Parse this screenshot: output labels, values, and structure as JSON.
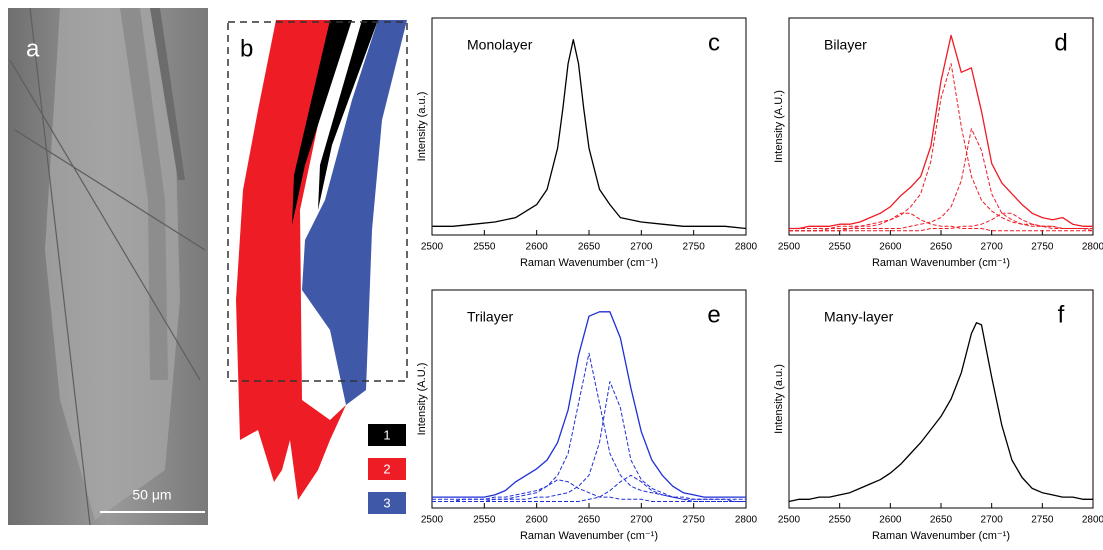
{
  "panel_a": {
    "label": "a",
    "scale_bar": "50 μm"
  },
  "panel_b": {
    "label": "b",
    "legend": [
      {
        "label": "1",
        "color": "#000000"
      },
      {
        "label": "2",
        "color": "#ee1c25"
      },
      {
        "label": "3",
        "color": "#3f58a8"
      }
    ]
  },
  "chart_data": [
    {
      "type": "line",
      "panel_label": "c",
      "title": "Monolayer",
      "x_label": "Raman Wavenumber (cm⁻¹)",
      "y_label": "Intensity (a.u.)",
      "x": [
        2500,
        2520,
        2540,
        2560,
        2580,
        2600,
        2610,
        2620,
        2625,
        2630,
        2635,
        2640,
        2645,
        2650,
        2660,
        2670,
        2680,
        2700,
        2720,
        2740,
        2760,
        2780,
        2800
      ],
      "series": [
        {
          "color": "#000000",
          "dash": false,
          "values": [
            0.04,
            0.04,
            0.05,
            0.06,
            0.08,
            0.14,
            0.21,
            0.4,
            0.58,
            0.79,
            0.9,
            0.79,
            0.58,
            0.4,
            0.21,
            0.14,
            0.08,
            0.06,
            0.05,
            0.04,
            0.04,
            0.04,
            0.03
          ]
        }
      ],
      "xlim": [
        2500,
        2800
      ],
      "ylim": [
        0,
        1
      ],
      "xticks": [
        2500,
        2550,
        2600,
        2650,
        2700,
        2750,
        2800
      ]
    },
    {
      "type": "line",
      "panel_label": "d",
      "title": "Bilayer",
      "x_label": "Raman Wavenumber (cm⁻¹)",
      "y_label": "Intensity (A.U.)",
      "x": [
        2500,
        2510,
        2520,
        2530,
        2540,
        2550,
        2560,
        2570,
        2580,
        2590,
        2600,
        2610,
        2620,
        2630,
        2640,
        2650,
        2660,
        2670,
        2680,
        2690,
        2700,
        2710,
        2720,
        2730,
        2740,
        2750,
        2760,
        2770,
        2780,
        2790,
        2800
      ],
      "series": [
        {
          "color": "#ee1c25",
          "dash": false,
          "values": [
            0.03,
            0.03,
            0.04,
            0.04,
            0.04,
            0.05,
            0.05,
            0.06,
            0.08,
            0.1,
            0.13,
            0.18,
            0.22,
            0.27,
            0.41,
            0.71,
            0.92,
            0.75,
            0.77,
            0.57,
            0.33,
            0.24,
            0.19,
            0.14,
            0.1,
            0.08,
            0.07,
            0.08,
            0.05,
            0.04,
            0.04
          ]
        },
        {
          "color": "#ee1c25",
          "dash": true,
          "values": [
            0.03,
            0.03,
            0.03,
            0.03,
            0.03,
            0.04,
            0.04,
            0.04,
            0.05,
            0.06,
            0.07,
            0.09,
            0.13,
            0.19,
            0.34,
            0.63,
            0.79,
            0.5,
            0.27,
            0.16,
            0.11,
            0.08,
            0.06,
            0.05,
            0.05,
            0.04,
            0.04,
            0.03,
            0.03,
            0.03,
            0.03
          ]
        },
        {
          "color": "#ee1c25",
          "dash": true,
          "values": [
            0.02,
            0.02,
            0.02,
            0.02,
            0.02,
            0.02,
            0.03,
            0.03,
            0.03,
            0.03,
            0.03,
            0.03,
            0.04,
            0.05,
            0.06,
            0.08,
            0.13,
            0.25,
            0.49,
            0.39,
            0.19,
            0.1,
            0.07,
            0.05,
            0.04,
            0.04,
            0.03,
            0.03,
            0.03,
            0.03,
            0.03
          ]
        },
        {
          "color": "#ee1c25",
          "dash": true,
          "values": [
            0.02,
            0.02,
            0.02,
            0.02,
            0.03,
            0.03,
            0.03,
            0.04,
            0.04,
            0.05,
            0.07,
            0.1,
            0.1,
            0.07,
            0.05,
            0.04,
            0.04,
            0.03,
            0.03,
            0.03,
            0.02,
            0.02,
            0.02,
            0.02,
            0.02,
            0.02,
            0.02,
            0.02,
            0.02,
            0.02,
            0.02
          ]
        },
        {
          "color": "#ee1c25",
          "dash": true,
          "values": [
            0.02,
            0.02,
            0.02,
            0.02,
            0.02,
            0.02,
            0.02,
            0.02,
            0.02,
            0.02,
            0.02,
            0.02,
            0.02,
            0.02,
            0.03,
            0.03,
            0.03,
            0.04,
            0.04,
            0.05,
            0.07,
            0.1,
            0.1,
            0.07,
            0.05,
            0.04,
            0.04,
            0.03,
            0.03,
            0.03,
            0.02
          ]
        }
      ],
      "xlim": [
        2500,
        2800
      ],
      "ylim": [
        0,
        1
      ],
      "xticks": [
        2500,
        2550,
        2600,
        2650,
        2700,
        2750,
        2800
      ]
    },
    {
      "type": "line",
      "panel_label": "e",
      "title": "Trilayer",
      "x_label": "Raman Wavenumber (cm⁻¹)",
      "y_label": "Intensity (A.U.)",
      "x": [
        2500,
        2510,
        2520,
        2530,
        2540,
        2550,
        2560,
        2570,
        2580,
        2590,
        2600,
        2610,
        2620,
        2630,
        2640,
        2650,
        2660,
        2670,
        2680,
        2690,
        2700,
        2710,
        2720,
        2730,
        2740,
        2750,
        2760,
        2770,
        2780,
        2790,
        2800
      ],
      "series": [
        {
          "color": "#1f2fd6",
          "dash": false,
          "values": [
            0.05,
            0.05,
            0.05,
            0.05,
            0.05,
            0.05,
            0.06,
            0.08,
            0.12,
            0.15,
            0.18,
            0.22,
            0.3,
            0.45,
            0.7,
            0.88,
            0.9,
            0.9,
            0.78,
            0.55,
            0.35,
            0.22,
            0.15,
            0.1,
            0.07,
            0.06,
            0.05,
            0.05,
            0.05,
            0.05,
            0.05
          ]
        },
        {
          "color": "#1f2fd6",
          "dash": true,
          "values": [
            0.04,
            0.04,
            0.04,
            0.04,
            0.04,
            0.04,
            0.05,
            0.05,
            0.06,
            0.07,
            0.08,
            0.1,
            0.15,
            0.25,
            0.48,
            0.71,
            0.48,
            0.25,
            0.15,
            0.1,
            0.08,
            0.07,
            0.06,
            0.05,
            0.04,
            0.04,
            0.04,
            0.04,
            0.04,
            0.04,
            0.04
          ]
        },
        {
          "color": "#1f2fd6",
          "dash": true,
          "values": [
            0.03,
            0.03,
            0.03,
            0.04,
            0.04,
            0.04,
            0.04,
            0.04,
            0.04,
            0.04,
            0.05,
            0.05,
            0.06,
            0.07,
            0.1,
            0.15,
            0.3,
            0.58,
            0.46,
            0.22,
            0.13,
            0.09,
            0.07,
            0.05,
            0.05,
            0.04,
            0.04,
            0.04,
            0.04,
            0.03,
            0.03
          ]
        },
        {
          "color": "#1f2fd6",
          "dash": true,
          "values": [
            0.03,
            0.03,
            0.03,
            0.03,
            0.03,
            0.03,
            0.04,
            0.04,
            0.05,
            0.06,
            0.07,
            0.1,
            0.13,
            0.12,
            0.09,
            0.07,
            0.05,
            0.05,
            0.04,
            0.04,
            0.04,
            0.03,
            0.03,
            0.03,
            0.03,
            0.03,
            0.03,
            0.03,
            0.03,
            0.03,
            0.03
          ]
        },
        {
          "color": "#1f2fd6",
          "dash": true,
          "values": [
            0.03,
            0.03,
            0.03,
            0.03,
            0.03,
            0.03,
            0.03,
            0.03,
            0.03,
            0.03,
            0.03,
            0.03,
            0.03,
            0.03,
            0.03,
            0.04,
            0.05,
            0.08,
            0.12,
            0.15,
            0.12,
            0.08,
            0.06,
            0.05,
            0.04,
            0.03,
            0.03,
            0.03,
            0.03,
            0.03,
            0.03
          ]
        }
      ],
      "xlim": [
        2500,
        2800
      ],
      "ylim": [
        0,
        1
      ],
      "xticks": [
        2500,
        2550,
        2600,
        2650,
        2700,
        2750,
        2800
      ]
    },
    {
      "type": "line",
      "panel_label": "f",
      "title": "Many-layer",
      "x_label": "Raman Wavenumber (cm⁻¹)",
      "y_label": "Intensity (a.u.)",
      "x": [
        2500,
        2510,
        2520,
        2530,
        2540,
        2550,
        2560,
        2570,
        2580,
        2590,
        2600,
        2610,
        2620,
        2630,
        2640,
        2650,
        2660,
        2670,
        2680,
        2685,
        2690,
        2700,
        2710,
        2720,
        2730,
        2740,
        2750,
        2760,
        2770,
        2780,
        2790,
        2800
      ],
      "series": [
        {
          "color": "#000000",
          "dash": false,
          "values": [
            0.03,
            0.04,
            0.04,
            0.05,
            0.05,
            0.06,
            0.07,
            0.09,
            0.11,
            0.13,
            0.16,
            0.2,
            0.25,
            0.3,
            0.36,
            0.42,
            0.5,
            0.62,
            0.8,
            0.85,
            0.84,
            0.6,
            0.38,
            0.22,
            0.14,
            0.09,
            0.07,
            0.06,
            0.05,
            0.05,
            0.04,
            0.04
          ]
        }
      ],
      "xlim": [
        2500,
        2800
      ],
      "ylim": [
        0,
        1
      ],
      "xticks": [
        2500,
        2550,
        2600,
        2650,
        2700,
        2750,
        2800
      ]
    }
  ]
}
